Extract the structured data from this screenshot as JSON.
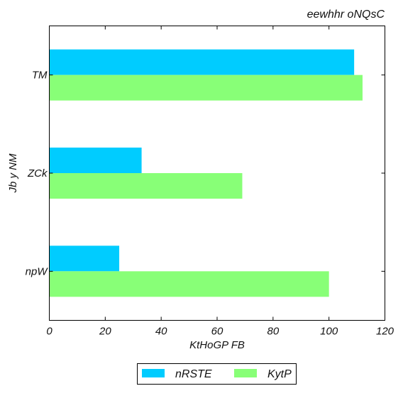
{
  "chart_data": {
    "type": "bar",
    "orientation": "horizontal",
    "title": "eewhhr oNQsC",
    "xlabel": "KtHoGP FB",
    "ylabel": "Jb y NM",
    "categories": [
      "npW",
      "ZCk",
      "TM"
    ],
    "series": [
      {
        "name": "nRSTE",
        "color": "#00ccff",
        "values": [
          25,
          33,
          109
        ]
      },
      {
        "name": "KytP",
        "color": "#88ff77",
        "values": [
          100,
          69,
          112
        ]
      }
    ],
    "xlim": [
      0,
      120
    ],
    "xticks": [
      0,
      20,
      40,
      60,
      80,
      100,
      120
    ],
    "grid": false,
    "legend_position": "bottom-center"
  }
}
